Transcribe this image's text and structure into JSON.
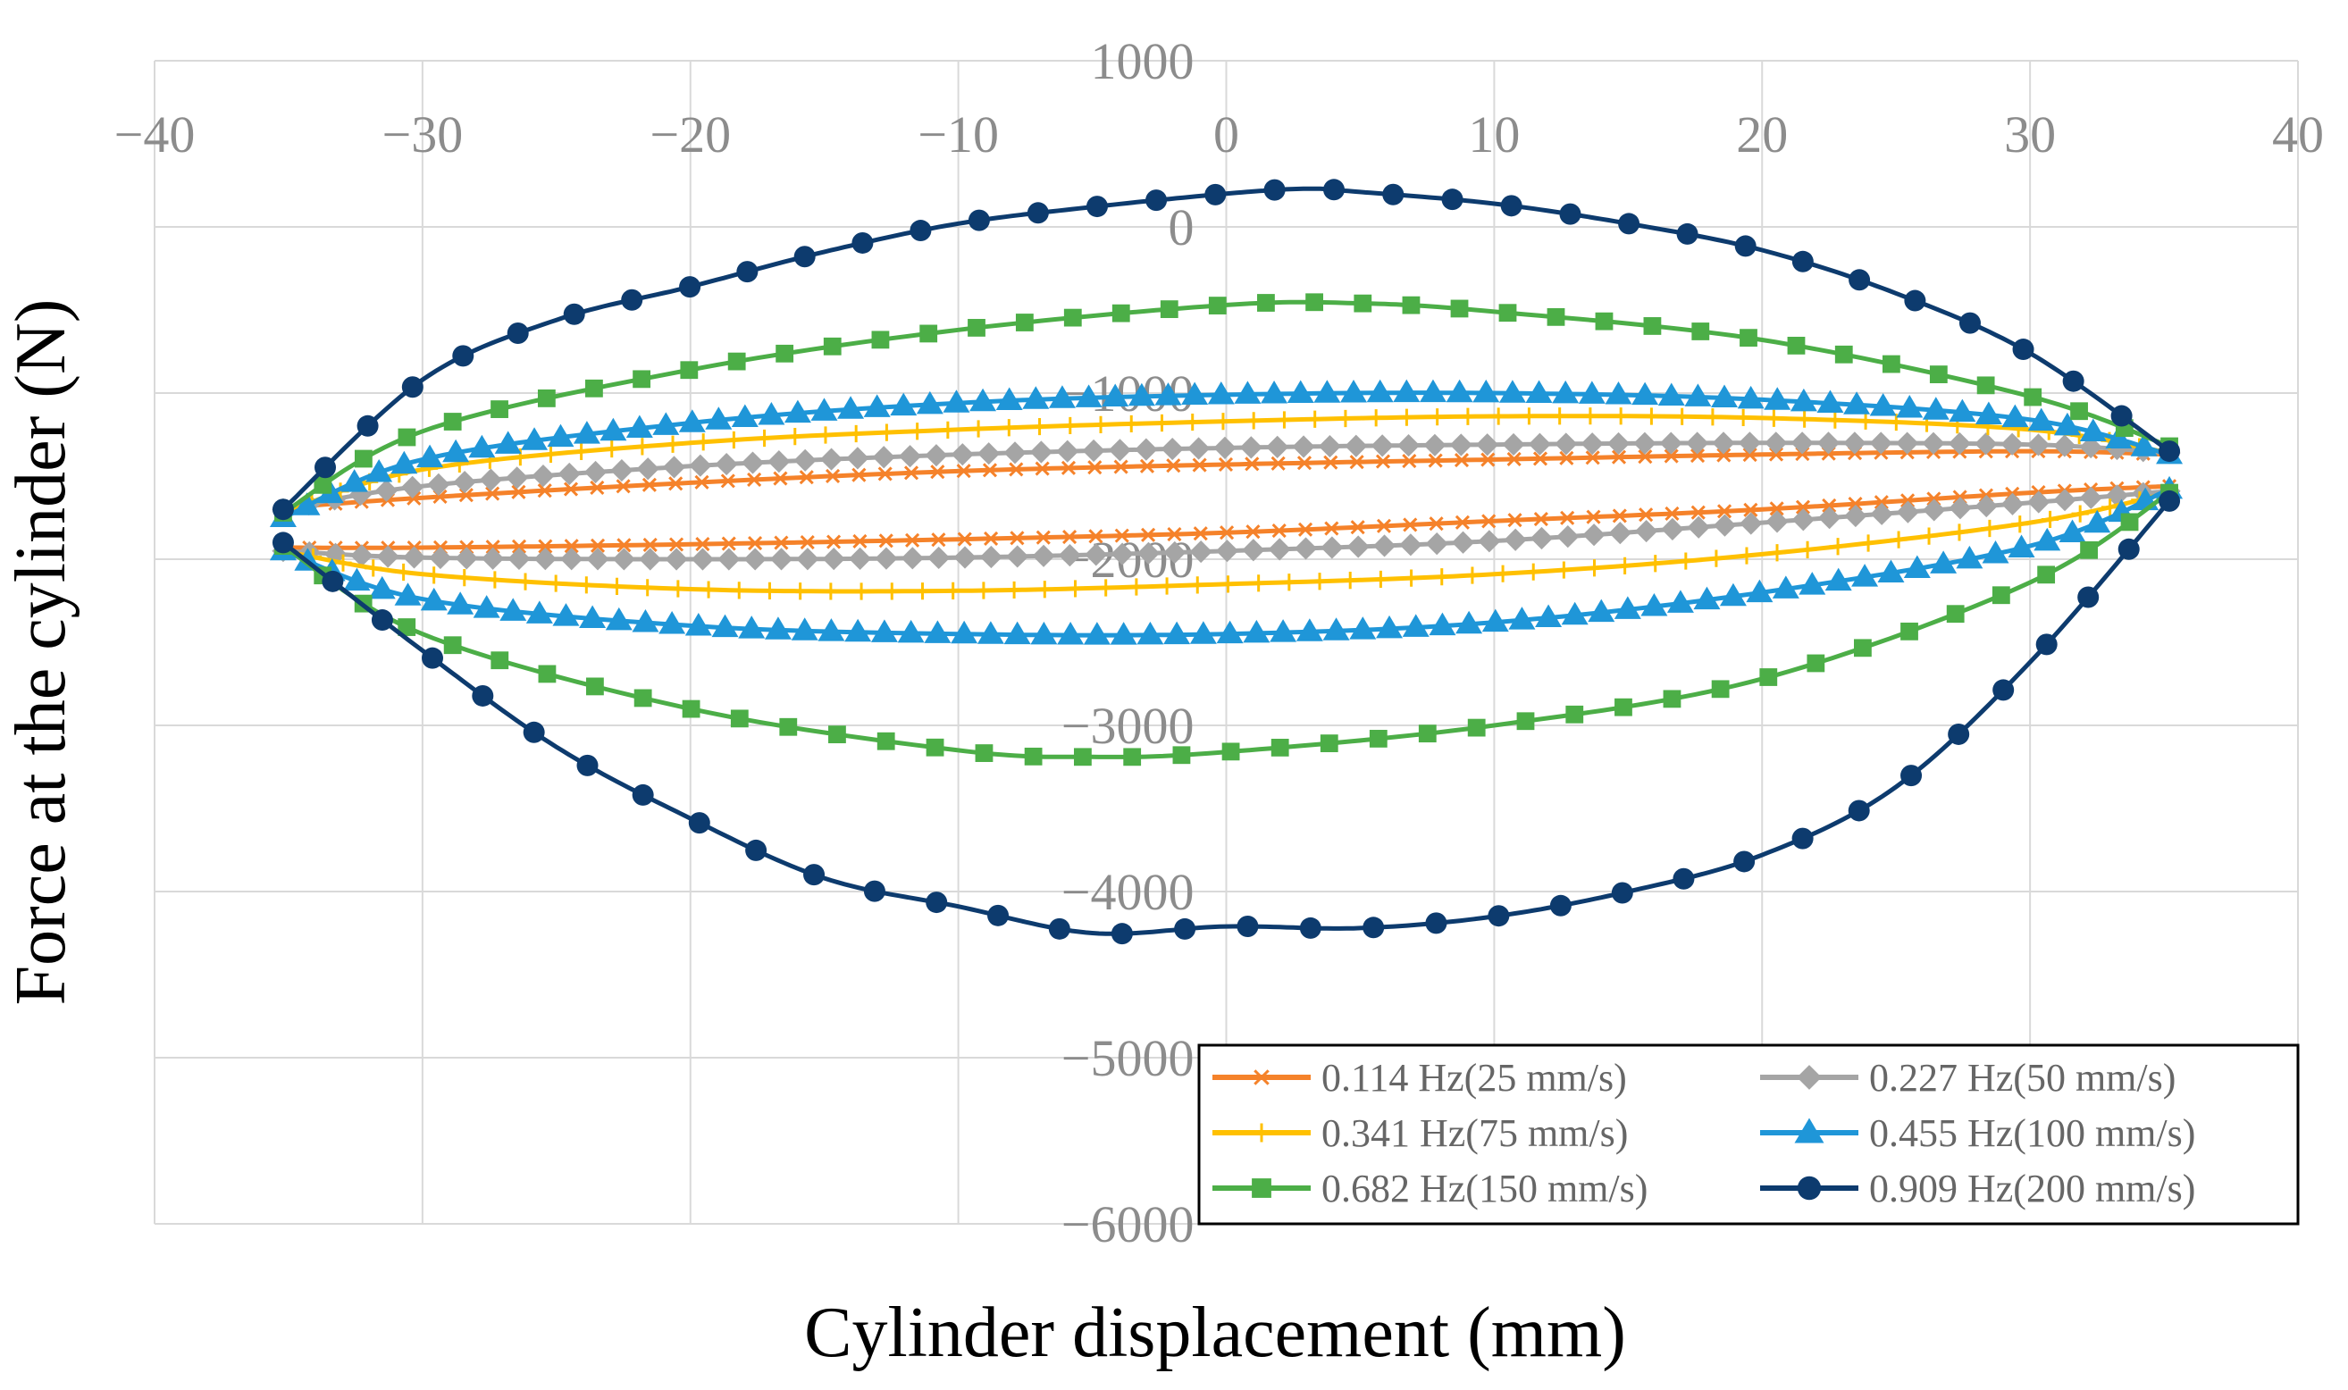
{
  "chart_data": {
    "type": "line",
    "title": "",
    "xlabel": "Cylinder displacement (mm)",
    "ylabel": "Force at the cylinder (N)",
    "xlim": [
      -40,
      40
    ],
    "ylim": [
      -6000,
      1000
    ],
    "x_ticks": [
      "−40",
      "−30",
      "−20",
      "−10",
      "0",
      "10",
      "20",
      "30",
      "40"
    ],
    "y_ticks": [
      "1000",
      "0",
      "−1000",
      "−2000",
      "−3000",
      "−4000",
      "−5000",
      "−6000"
    ],
    "grid": true,
    "legend_position": "bottom-right",
    "series": [
      {
        "name": "0.114 Hz(25 mm/s)",
        "color": "#f5822a",
        "marker": "x",
        "upper": [
          [
            -35.2,
            -1690
          ],
          [
            -30,
            -1630
          ],
          [
            -20,
            -1540
          ],
          [
            -10,
            -1470
          ],
          [
            0,
            -1430
          ],
          [
            10,
            -1400
          ],
          [
            20,
            -1370
          ],
          [
            30,
            -1350
          ],
          [
            35.2,
            -1370
          ]
        ],
        "lower": [
          [
            35.2,
            -1560
          ],
          [
            30,
            -1600
          ],
          [
            20,
            -1700
          ],
          [
            10,
            -1770
          ],
          [
            0,
            -1840
          ],
          [
            -10,
            -1880
          ],
          [
            -20,
            -1910
          ],
          [
            -30,
            -1930
          ],
          [
            -35.2,
            -1930
          ]
        ]
      },
      {
        "name": "0.227 Hz(50 mm/s)",
        "color": "#a5a5a5",
        "marker": "diamond",
        "upper": [
          [
            -35.2,
            -1700
          ],
          [
            -30,
            -1560
          ],
          [
            -20,
            -1440
          ],
          [
            -10,
            -1370
          ],
          [
            0,
            -1330
          ],
          [
            10,
            -1310
          ],
          [
            20,
            -1300
          ],
          [
            30,
            -1310
          ],
          [
            35.2,
            -1360
          ]
        ],
        "lower": [
          [
            35.2,
            -1590
          ],
          [
            30,
            -1660
          ],
          [
            20,
            -1780
          ],
          [
            10,
            -1890
          ],
          [
            0,
            -1950
          ],
          [
            -10,
            -1990
          ],
          [
            -20,
            -2000
          ],
          [
            -30,
            -1990
          ],
          [
            -35.2,
            -1950
          ]
        ]
      },
      {
        "name": "0.341 Hz(75 mm/s)",
        "color": "#ffc000",
        "marker": "plus",
        "upper": [
          [
            -35.2,
            -1720
          ],
          [
            -30,
            -1460
          ],
          [
            -20,
            -1300
          ],
          [
            -10,
            -1220
          ],
          [
            0,
            -1170
          ],
          [
            10,
            -1140
          ],
          [
            20,
            -1150
          ],
          [
            30,
            -1220
          ],
          [
            35.2,
            -1360
          ]
        ],
        "lower": [
          [
            35.2,
            -1600
          ],
          [
            30,
            -1780
          ],
          [
            20,
            -1970
          ],
          [
            10,
            -2090
          ],
          [
            0,
            -2150
          ],
          [
            -10,
            -2190
          ],
          [
            -20,
            -2180
          ],
          [
            -30,
            -2090
          ],
          [
            -35.2,
            -1950
          ]
        ]
      },
      {
        "name": "0.455 Hz(100 mm/s)",
        "color": "#1f96d8",
        "marker": "triangle",
        "upper": [
          [
            -35.2,
            -1750
          ],
          [
            -30,
            -1400
          ],
          [
            -20,
            -1180
          ],
          [
            -10,
            -1060
          ],
          [
            0,
            -1010
          ],
          [
            10,
            -1000
          ],
          [
            20,
            -1040
          ],
          [
            30,
            -1160
          ],
          [
            35.2,
            -1370
          ]
        ],
        "lower": [
          [
            35.2,
            -1580
          ],
          [
            30,
            -1920
          ],
          [
            20,
            -2200
          ],
          [
            10,
            -2380
          ],
          [
            0,
            -2450
          ],
          [
            -10,
            -2450
          ],
          [
            -20,
            -2400
          ],
          [
            -30,
            -2240
          ],
          [
            -35.2,
            -1950
          ]
        ]
      },
      {
        "name": "0.682 Hz(150 mm/s)",
        "color": "#4cae47",
        "marker": "square",
        "upper": [
          [
            -35.2,
            -1720
          ],
          [
            -30,
            -1230
          ],
          [
            -20,
            -860
          ],
          [
            -10,
            -620
          ],
          [
            0,
            -470
          ],
          [
            5,
            -460
          ],
          [
            10,
            -510
          ],
          [
            20,
            -680
          ],
          [
            30,
            -1020
          ],
          [
            35.2,
            -1320
          ]
        ],
        "lower": [
          [
            35.2,
            -1600
          ],
          [
            30,
            -2140
          ],
          [
            20,
            -2720
          ],
          [
            10,
            -3000
          ],
          [
            0,
            -3160
          ],
          [
            -5,
            -3190
          ],
          [
            -10,
            -3150
          ],
          [
            -20,
            -2900
          ],
          [
            -30,
            -2450
          ],
          [
            -35.2,
            -1920
          ]
        ]
      },
      {
        "name": "0.909 Hz(200 mm/s)",
        "color": "#0d3b6e",
        "marker": "circle",
        "upper": [
          [
            -35.2,
            -1700
          ],
          [
            -30,
            -920
          ],
          [
            -25,
            -560
          ],
          [
            -20,
            -360
          ],
          [
            -15,
            -150
          ],
          [
            -10,
            20
          ],
          [
            -5,
            120
          ],
          [
            0,
            200
          ],
          [
            3,
            230
          ],
          [
            5,
            210
          ],
          [
            10,
            140
          ],
          [
            15,
            20
          ],
          [
            20,
            -140
          ],
          [
            25,
            -400
          ],
          [
            30,
            -760
          ],
          [
            35.2,
            -1350
          ]
        ],
        "lower": [
          [
            35.2,
            -1650
          ],
          [
            30,
            -2620
          ],
          [
            25,
            -3370
          ],
          [
            20,
            -3780
          ],
          [
            15,
            -4000
          ],
          [
            10,
            -4150
          ],
          [
            5,
            -4220
          ],
          [
            0,
            -4210
          ],
          [
            -5,
            -4250
          ],
          [
            -10,
            -4090
          ],
          [
            -15,
            -3920
          ],
          [
            -20,
            -3560
          ],
          [
            -25,
            -3130
          ],
          [
            -30,
            -2550
          ],
          [
            -35.2,
            -1900
          ]
        ]
      }
    ]
  }
}
